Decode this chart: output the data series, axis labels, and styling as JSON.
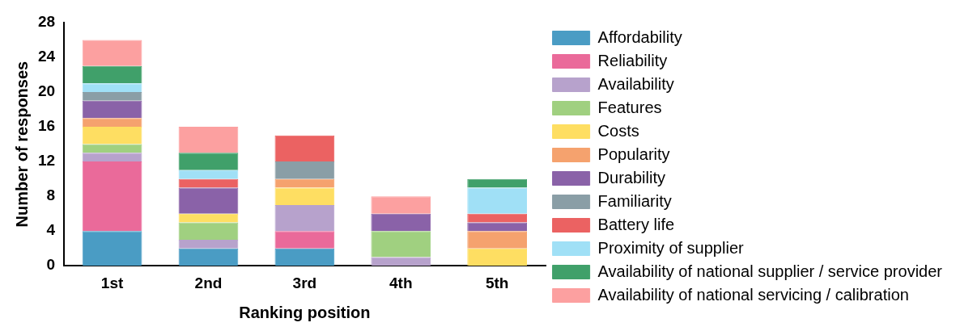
{
  "chart_data": {
    "type": "bar",
    "stacked": true,
    "xlabel": "Ranking position",
    "ylabel": "Number of responses",
    "categories": [
      "1st",
      "2nd",
      "3rd",
      "4th",
      "5th"
    ],
    "ylim": [
      0,
      28
    ],
    "yticks": [
      0,
      4,
      8,
      12,
      16,
      20,
      24,
      28
    ],
    "grid": false,
    "legend": "right",
    "series": [
      {
        "name": "Affordability",
        "color": "#4a9cc4",
        "values": [
          4,
          2,
          2,
          0,
          0
        ]
      },
      {
        "name": "Reliability",
        "color": "#ea6a9a",
        "values": [
          8,
          0,
          2,
          0,
          0
        ]
      },
      {
        "name": "Availability",
        "color": "#b7a2cc",
        "values": [
          1,
          1,
          3,
          1,
          0
        ]
      },
      {
        "name": "Features",
        "color": "#a0d080",
        "values": [
          1,
          2,
          0,
          3,
          0
        ]
      },
      {
        "name": "Costs",
        "color": "#fede62",
        "values": [
          2,
          1,
          2,
          0,
          2
        ]
      },
      {
        "name": "Popularity",
        "color": "#f5a26e",
        "values": [
          1,
          0,
          1,
          0,
          2
        ]
      },
      {
        "name": "Durability",
        "color": "#8a62a8",
        "values": [
          2,
          3,
          0,
          2,
          1
        ]
      },
      {
        "name": "Familiarity",
        "color": "#8a9ea6",
        "values": [
          1,
          0,
          2,
          0,
          0
        ]
      },
      {
        "name": "Battery life",
        "color": "#eb6262",
        "values": [
          0,
          1,
          3,
          0,
          1
        ]
      },
      {
        "name": "Proximity of supplier",
        "color": "#a0e0f6",
        "values": [
          1,
          1,
          0,
          0,
          3
        ]
      },
      {
        "name": "Availability of national supplier / service provider",
        "color": "#40a06a",
        "values": [
          2,
          2,
          0,
          0,
          1
        ]
      },
      {
        "name": "Availability of national servicing / calibration",
        "color": "#fca0a0",
        "values": [
          3,
          3,
          0,
          2,
          0
        ]
      }
    ]
  }
}
